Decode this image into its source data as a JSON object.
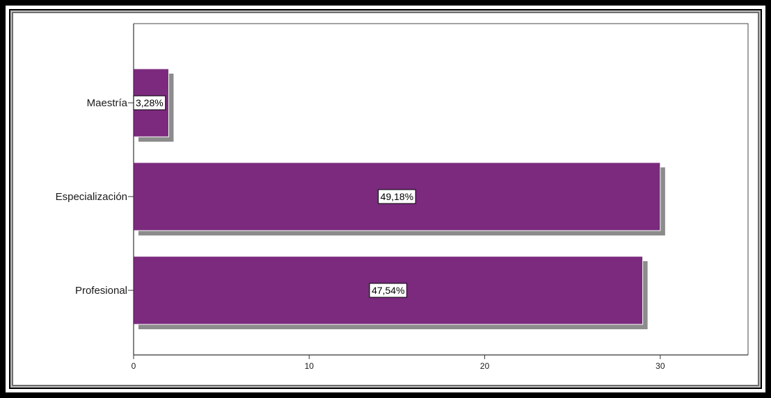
{
  "chart_data": {
    "type": "bar",
    "orientation": "horizontal",
    "categories": [
      "Maestría",
      "Especialización",
      "Profesional"
    ],
    "values": [
      2,
      30,
      29
    ],
    "data_labels": [
      "3,28%",
      "49,18%",
      "47,54%"
    ],
    "xlim": [
      0,
      35
    ],
    "xticks": [
      0,
      10,
      20,
      30
    ],
    "title": "",
    "xlabel": "",
    "ylabel": "",
    "grid": false,
    "legend": "none",
    "colors": {
      "bar": "#7B2A7E",
      "bar_edge": "#ffffff",
      "shadow": "#8c8c8c",
      "axis": "#333333"
    }
  }
}
